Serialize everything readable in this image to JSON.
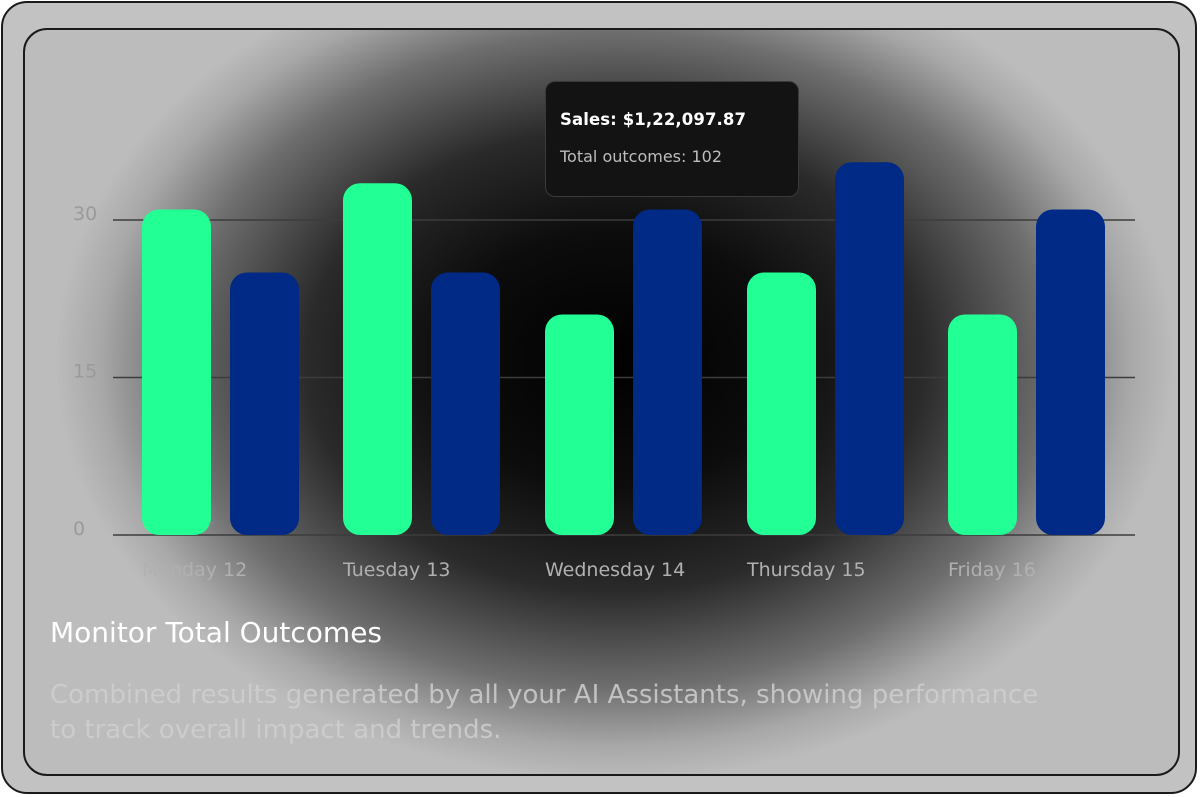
{
  "chart_data": {
    "type": "bar",
    "categories": [
      "Monday 12",
      "Tuesday 13",
      "Wednesday 14",
      "Thursday 15",
      "Friday 16"
    ],
    "series": [
      {
        "name": "series-green",
        "color": "#22ff94",
        "values": [
          31,
          33.5,
          21,
          25,
          21
        ]
      },
      {
        "name": "series-blue",
        "color": "#002a85",
        "values": [
          25,
          25,
          31,
          35.5,
          31
        ]
      }
    ],
    "yticks": [
      0,
      15,
      30
    ],
    "ylim": [
      0,
      40
    ],
    "grid": true,
    "tooltip": {
      "sales": "Sales: $1,22,097.87",
      "outcomes": "Total outcomes: 102"
    }
  },
  "card": {
    "title": "Monitor Total Outcomes",
    "description": "Combined results generated by all your AI Assistants, showing performance to track overall impact and trends."
  }
}
